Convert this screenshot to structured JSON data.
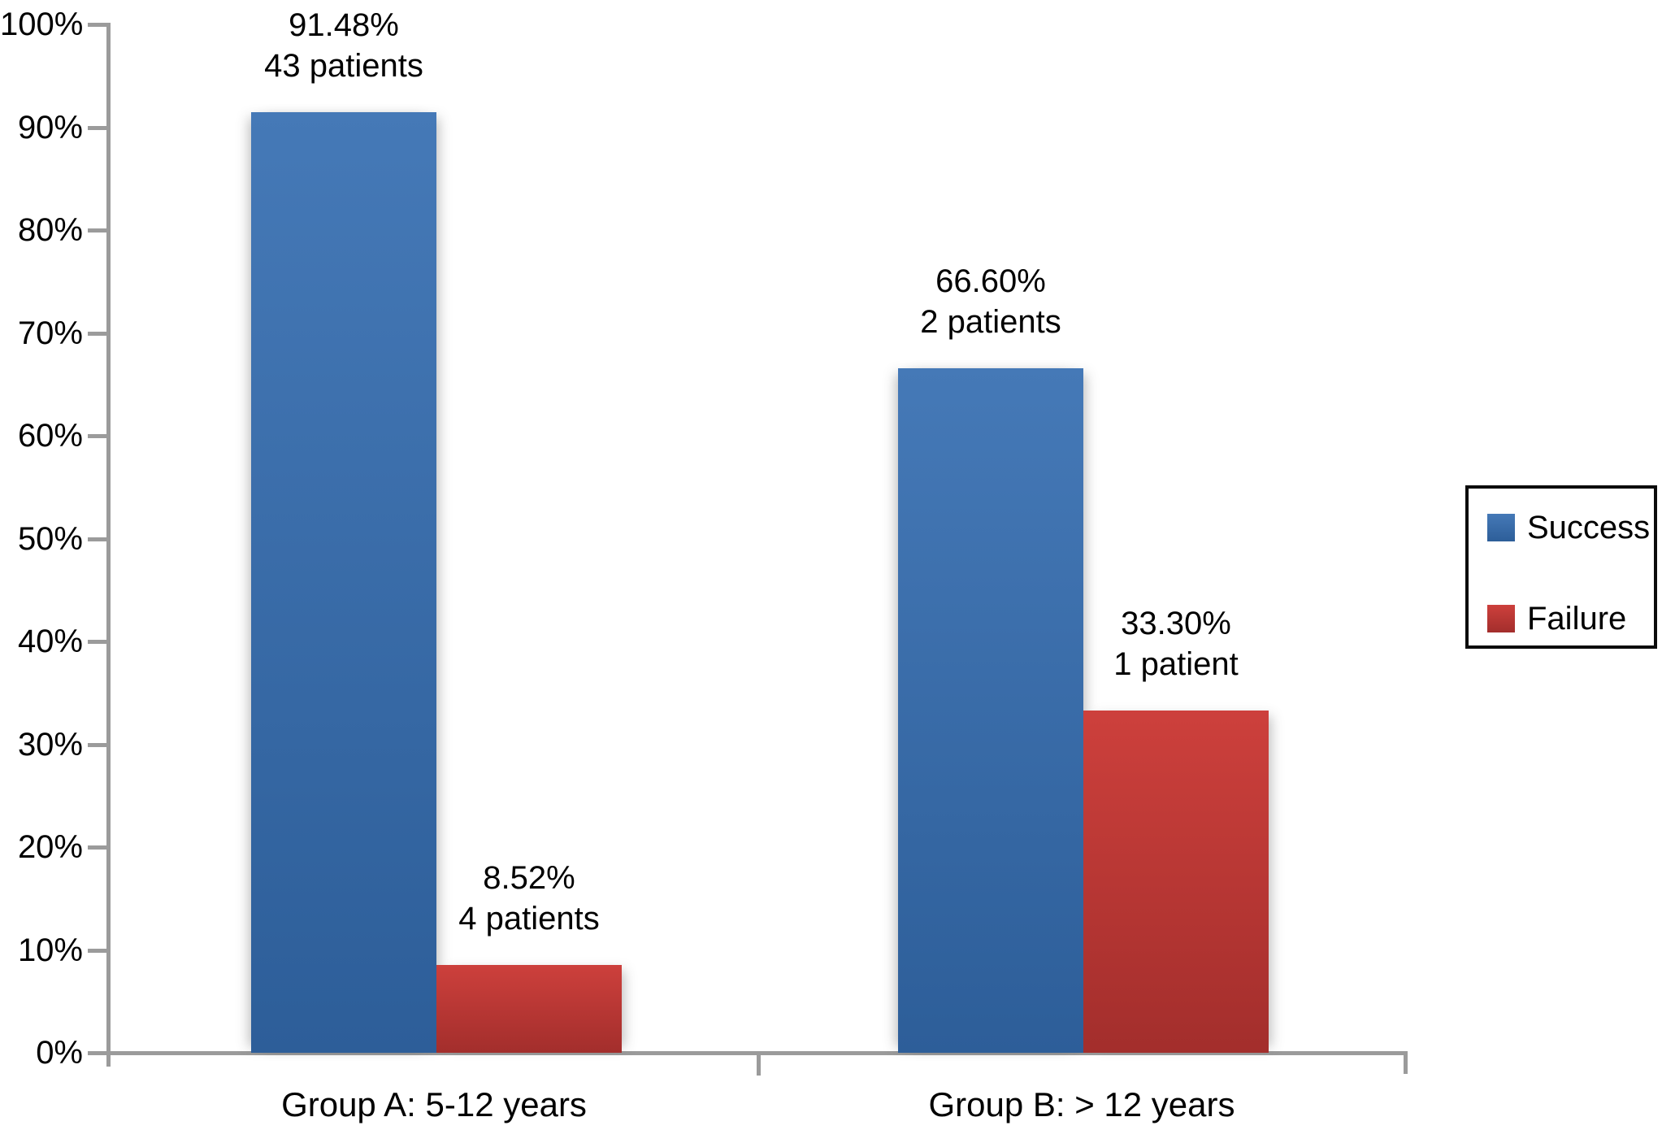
{
  "chart_data": {
    "type": "bar",
    "categories": [
      "Group A: 5-12 years",
      "Group B: > 12 years"
    ],
    "series": [
      {
        "name": "Success",
        "values": [
          91.48,
          66.6
        ],
        "counts": [
          43,
          2
        ],
        "color": "#3a6fae"
      },
      {
        "name": "Failure",
        "values": [
          8.52,
          33.3
        ],
        "counts": [
          4,
          1
        ],
        "color": "#c33d39"
      }
    ],
    "ylim": [
      0,
      100
    ],
    "y_tick_labels": [
      "100%",
      "90%",
      "80%",
      "70%",
      "60%",
      "50%",
      "40%",
      "30%",
      "20%",
      "10%",
      "0%"
    ],
    "grid": false,
    "legend_position": "right"
  },
  "bars": [
    {
      "id": "a-success",
      "category": "Group A: 5-12 years",
      "series": "Success",
      "value": 91.48,
      "pct_label": "91.48%",
      "count_label": "43 patients"
    },
    {
      "id": "a-failure",
      "category": "Group A: 5-12 years",
      "series": "Failure",
      "value": 8.52,
      "pct_label": "8.52%",
      "count_label": "4 patients"
    },
    {
      "id": "b-success",
      "category": "Group B: > 12 years",
      "series": "Success",
      "value": 66.6,
      "pct_label": "66.60%",
      "count_label": "2 patients"
    },
    {
      "id": "b-failure",
      "category": "Group B: > 12 years",
      "series": "Failure",
      "value": 33.3,
      "pct_label": "33.30%",
      "count_label": "1 patient"
    }
  ],
  "legend": {
    "items": [
      {
        "label": "Success",
        "color": "#3a6fae"
      },
      {
        "label": "Failure",
        "color": "#c33d39"
      }
    ]
  },
  "colors": {
    "success_top": "#4579b7",
    "success_bottom": "#2d5e99",
    "failure_top": "#cd403c",
    "failure_bottom": "#a32e2c",
    "axis": "#9b9b9b",
    "text": "#000000",
    "background": "#ffffff"
  }
}
